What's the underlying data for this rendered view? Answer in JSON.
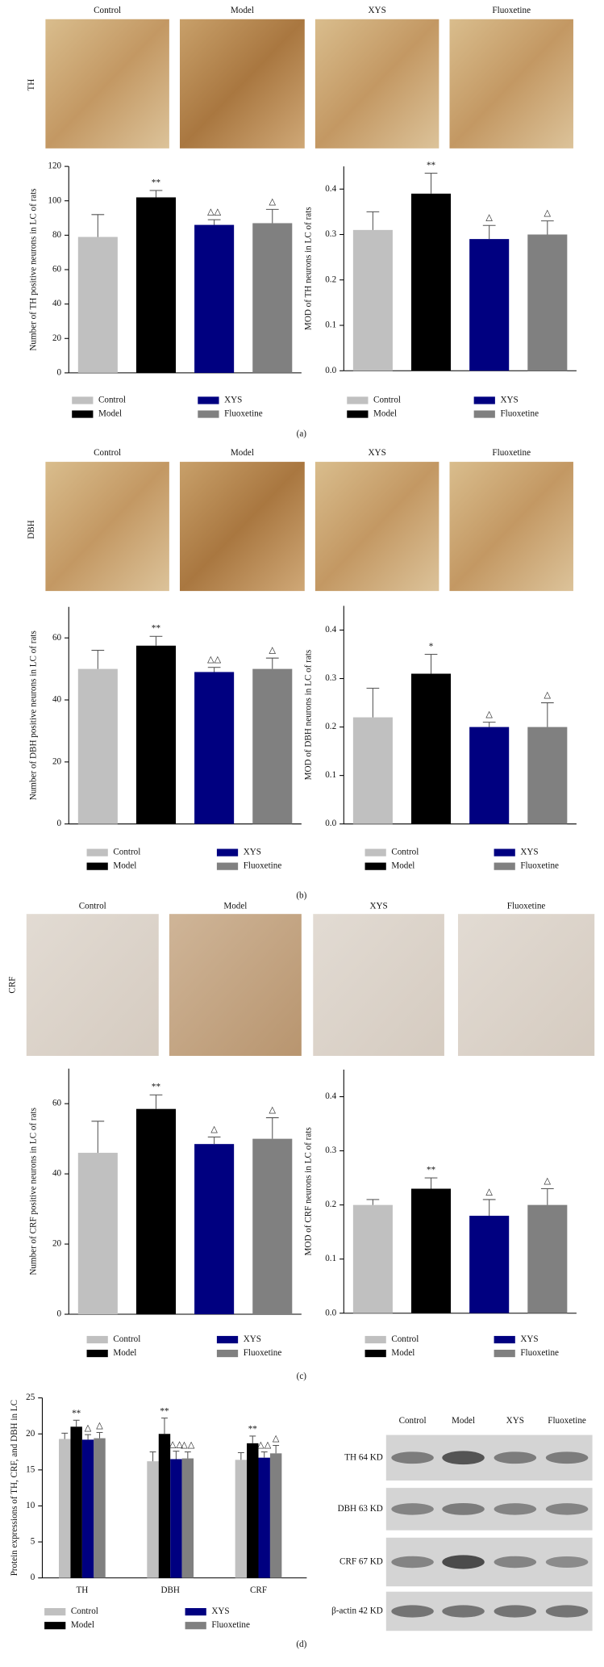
{
  "figure_panels": [
    {
      "label": "(a)",
      "row_label": "TH",
      "columns": [
        "Control",
        "Model",
        "XYS",
        "Fluoxetine"
      ]
    },
    {
      "label": "(b)",
      "row_label": "DBH",
      "columns": [
        "Control",
        "Model",
        "XYS",
        "Fluoxetine"
      ]
    },
    {
      "label": "(c)",
      "row_label": "CRF",
      "columns": [
        "Control",
        "Model",
        "XYS",
        "Fluoxetine"
      ]
    }
  ],
  "blot": {
    "label": "(d)",
    "columns": [
      "Control",
      "Model",
      "XYS",
      "Fluoxetine"
    ],
    "rows": [
      "TH 64 KD",
      "DBH 63 KD",
      "CRF 67 KD",
      "β-actin 42 KD"
    ]
  },
  "chart_data": [
    {
      "type": "bar",
      "ylabel": "Number of TH positive neurons in LC of rats",
      "categories": [
        "Control",
        "Model",
        "XYS",
        "Fluoxetine"
      ],
      "values": [
        79,
        102,
        86,
        87
      ],
      "errors": [
        13,
        4,
        3,
        8
      ],
      "annotations": [
        null,
        "**",
        "△△",
        "△"
      ],
      "colors": [
        "#c0c0c0",
        "#000000",
        "#000080",
        "#808080"
      ],
      "ylim": [
        0,
        120
      ],
      "yticks": [
        0,
        20,
        40,
        60,
        80,
        100,
        120
      ]
    },
    {
      "type": "bar",
      "ylabel": "MOD of TH neurons in LC of rats",
      "categories": [
        "Control",
        "Model",
        "XYS",
        "Fluoxetine"
      ],
      "values": [
        0.31,
        0.39,
        0.29,
        0.3
      ],
      "errors": [
        0.04,
        0.045,
        0.03,
        0.03
      ],
      "annotations": [
        null,
        "**",
        "△",
        "△"
      ],
      "colors": [
        "#c0c0c0",
        "#000000",
        "#000080",
        "#808080"
      ],
      "ylim": [
        0,
        0.45
      ],
      "yticks": [
        {
          "value": 0,
          "label": "0.0"
        },
        0.1,
        0.2,
        0.3,
        0.4
      ]
    },
    {
      "type": "bar",
      "ylabel": "Number of DBH positive neurons in LC of rats",
      "categories": [
        "Control",
        "Model",
        "XYS",
        "Fluoxetine"
      ],
      "values": [
        50,
        57.5,
        49,
        50
      ],
      "errors": [
        6,
        3,
        1.5,
        3.5
      ],
      "annotations": [
        null,
        "**",
        "△△",
        "△"
      ],
      "colors": [
        "#c0c0c0",
        "#000000",
        "#000080",
        "#808080"
      ],
      "ylim": [
        0,
        70
      ],
      "yticks": [
        0,
        20,
        40,
        60
      ]
    },
    {
      "type": "bar",
      "ylabel": "MOD of DBH neurons in LC of rats",
      "categories": [
        "Control",
        "Model",
        "XYS",
        "Fluoxetine"
      ],
      "values": [
        0.22,
        0.31,
        0.2,
        0.2
      ],
      "errors": [
        0.06,
        0.04,
        0.01,
        0.05
      ],
      "annotations": [
        null,
        "*",
        "△",
        "△"
      ],
      "colors": [
        "#c0c0c0",
        "#000000",
        "#000080",
        "#808080"
      ],
      "ylim": [
        0,
        0.45
      ],
      "yticks": [
        {
          "value": 0,
          "label": "0.0"
        },
        0.1,
        0.2,
        0.3,
        0.4
      ]
    },
    {
      "type": "bar",
      "ylabel": "Number of CRF positive neurons in LC of rats",
      "categories": [
        "Control",
        "Model",
        "XYS",
        "Fluoxetine"
      ],
      "values": [
        46,
        58.5,
        48.5,
        50
      ],
      "errors": [
        9,
        4,
        2,
        6
      ],
      "annotations": [
        null,
        "**",
        "△",
        "△"
      ],
      "colors": [
        "#c0c0c0",
        "#000000",
        "#000080",
        "#808080"
      ],
      "ylim": [
        0,
        70
      ],
      "yticks": [
        0,
        20,
        40,
        60
      ]
    },
    {
      "type": "bar",
      "ylabel": "MOD of CRF neurons in LC of rats",
      "categories": [
        "Control",
        "Model",
        "XYS",
        "Fluoxetine"
      ],
      "values": [
        0.2,
        0.23,
        0.18,
        0.2
      ],
      "errors": [
        0.01,
        0.02,
        0.03,
        0.03
      ],
      "annotations": [
        null,
        "**",
        "△",
        "△"
      ],
      "colors": [
        "#c0c0c0",
        "#000000",
        "#000080",
        "#808080"
      ],
      "ylim": [
        0,
        0.45
      ],
      "yticks": [
        {
          "value": 0,
          "label": "0.0"
        },
        0.1,
        0.2,
        0.3,
        0.4
      ]
    },
    {
      "type": "grouped_bar",
      "ylabel": "Protein expressions of TH, CRF, and DBH in LC",
      "categories": [
        "TH",
        "DBH",
        "CRF"
      ],
      "ylim": [
        0,
        25
      ],
      "yticks": [
        0,
        5,
        10,
        15,
        20,
        25
      ],
      "series": [
        {
          "name": "Control",
          "color": "#c0c0c0",
          "values": [
            19.3,
            16.2,
            16.4
          ],
          "errors": [
            0.8,
            1.3,
            1
          ]
        },
        {
          "name": "Model",
          "color": "#000000",
          "values": [
            21,
            20,
            18.7
          ],
          "errors": [
            0.9,
            2.2,
            1
          ]
        },
        {
          "name": "XYS",
          "color": "#000080",
          "values": [
            19.2,
            16.5,
            16.7
          ],
          "errors": [
            0.7,
            1.1,
            0.8
          ]
        },
        {
          "name": "Fluoxetine",
          "color": "#808080",
          "values": [
            19.4,
            16.6,
            17.3
          ],
          "errors": [
            0.8,
            0.9,
            1.1
          ]
        }
      ],
      "annotations": [
        [
          null,
          null,
          null
        ],
        [
          "**",
          "**",
          "**"
        ],
        [
          "△",
          "△△",
          "△△"
        ],
        [
          "△",
          "△△",
          "△"
        ]
      ]
    }
  ]
}
